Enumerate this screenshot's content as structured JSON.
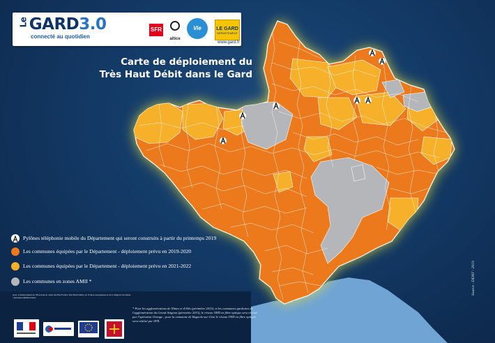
{
  "logo": {
    "brand_prefix": "Le",
    "brand_name": "GARD",
    "brand_version": "3.0",
    "tagline": "connecté au quotidien",
    "partner_sfr": "SFR",
    "partner_altice": "altice",
    "partner_vie": "Vie",
    "partner_legard": "LE GARD",
    "partner_legard_sub": "DÉPARTEMENT",
    "website": "www.gard.fr"
  },
  "title_line1": "Carte de déploiement du",
  "title_line2": "Très Haut Débit dans le Gard",
  "legend": {
    "pylons": "Pylônes téléphonie mobile du Département qui seront construits à partir du printemps 2019",
    "dept_2019_2020": "Les communes équipées par le Département - déploiement prévu en 2019-2020",
    "dept_2021_2022": "Les communes équipées par le Département - déploiement prévu en 2021-2022",
    "amii": "Les communes en zones AMII *"
  },
  "colors": {
    "dept_2019_2020": "#ec7a1d",
    "dept_2021_2022": "#f6b029",
    "amii": "#b4b6b9",
    "sea": "#6fa4d4",
    "background": "#133a66",
    "glow": "#e6e03a"
  },
  "icons": [
    "pylon-icon"
  ],
  "partner_text": "Avec le financement de l'Etat dans le cadre du Plan France Très Haut Débit, de l'Union européenne et de la Région Occitanie / Pyrénées-Méditerranée",
  "footnote": "* Pour les agglomérations de Nîmes et d'Alès (périmètre 2015), et les communes gardoises de l'agglomération du Grand Avignon (périmètre 2015), le réseau THD en fibre optique sera réalisé par l'opérateur Orange ; pour la commune de Bagnols-sur-Cèze le réseau THD en fibre optique sera réalisé par SFR.",
  "source": "Source : DDNT - 2019"
}
